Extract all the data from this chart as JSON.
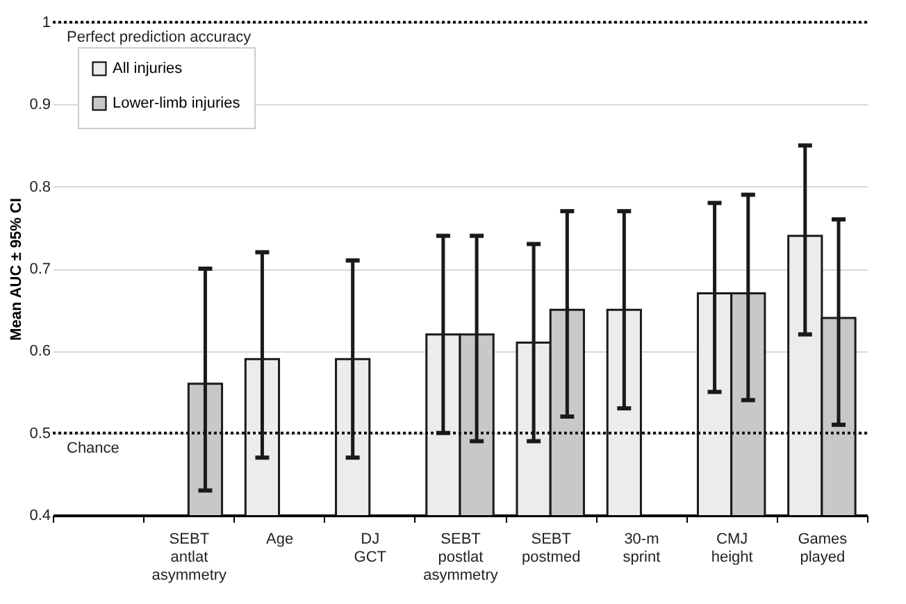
{
  "chart_data": {
    "type": "bar",
    "ylabel": "Mean AUC ± 95% CI",
    "categories": [
      null,
      "SEBT antlat asymmetry",
      "Age",
      "DJ GCT",
      "SEBT postlat asymmetry",
      "SEBT postmed",
      "30-m sprint",
      "CMJ height",
      "Games played"
    ],
    "series": [
      {
        "name": "All injuries",
        "color": "#eaecee",
        "values": [
          null,
          null,
          0.59,
          0.59,
          0.62,
          0.61,
          0.65,
          0.67,
          0.74
        ],
        "errors": [
          null,
          null,
          [
            0.47,
            0.72
          ],
          [
            0.47,
            0.71
          ],
          [
            0.5,
            0.74
          ],
          [
            0.49,
            0.73
          ],
          [
            0.53,
            0.77
          ],
          [
            0.55,
            0.78
          ],
          [
            0.62,
            0.85
          ]
        ]
      },
      {
        "name": "Lower-limb injuries",
        "color": "#c8c8c8",
        "values": [
          null,
          0.56,
          null,
          null,
          0.62,
          0.65,
          null,
          0.67,
          0.64
        ],
        "errors": [
          null,
          [
            0.43,
            0.7
          ],
          null,
          null,
          [
            0.49,
            0.74
          ],
          [
            0.52,
            0.77
          ],
          null,
          [
            0.54,
            0.79
          ],
          [
            0.51,
            0.76
          ]
        ]
      }
    ],
    "ylim": [
      0.4,
      1
    ],
    "yticks": [
      0.4,
      0.5,
      0.6,
      0.7,
      0.8,
      0.9,
      1
    ],
    "ref_lines": [
      {
        "axis": "y",
        "value": 0.5,
        "label": "Chance",
        "line_style": "dotted"
      },
      {
        "axis": "y",
        "value": 1,
        "label": "Perfect prediction accuracy",
        "line_style": "dotted"
      }
    ],
    "grid": "y",
    "legend": "top left"
  }
}
